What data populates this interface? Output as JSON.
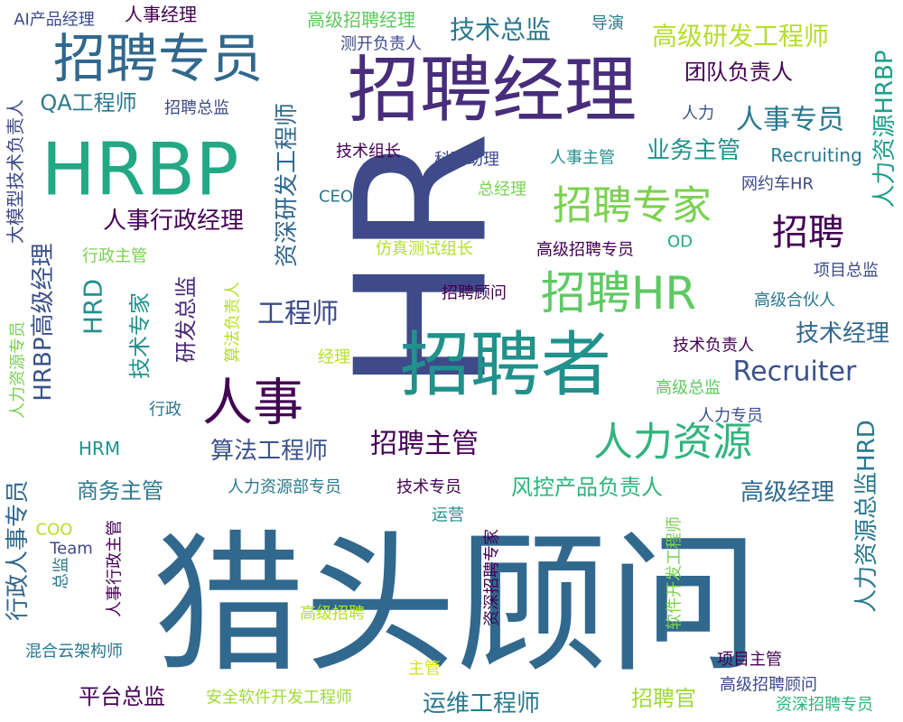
{
  "chart_data": {
    "type": "wordcloud",
    "words": [
      {
        "text": "猎头顾问",
        "color": "#31688e"
      },
      {
        "text": "HR",
        "color": "#3e4a89"
      },
      {
        "text": "招聘经理",
        "color": "#472d7b"
      },
      {
        "text": "HRBP",
        "color": "#22a884"
      },
      {
        "text": "招聘者",
        "color": "#21918c"
      },
      {
        "text": "招聘专员",
        "color": "#31688e"
      },
      {
        "text": "人事",
        "color": "#440154"
      },
      {
        "text": "招聘HR",
        "color": "#5ec962"
      },
      {
        "text": "人力资源",
        "color": "#2fb47c"
      },
      {
        "text": "招聘专家",
        "color": "#7ad151"
      },
      {
        "text": "招聘",
        "color": "#440154"
      },
      {
        "text": "Recruiter",
        "color": "#3b528b"
      },
      {
        "text": "人力资源总监HRD",
        "color": "#2a788e"
      },
      {
        "text": "资深研发工程师",
        "color": "#31688e"
      },
      {
        "text": "人力资源HRBP",
        "color": "#1f9e89"
      },
      {
        "text": "招聘主管",
        "color": "#440154"
      },
      {
        "text": "人事专员",
        "color": "#2a788e"
      },
      {
        "text": "工程师",
        "color": "#3e4a89"
      },
      {
        "text": "HRBP高级经理",
        "color": "#3b528b"
      },
      {
        "text": "HRD",
        "color": "#21918c"
      },
      {
        "text": "技术总监",
        "color": "#2a788e"
      },
      {
        "text": "高级研发工程师",
        "color": "#b5de2b"
      },
      {
        "text": "人事行政经理",
        "color": "#440154"
      },
      {
        "text": "高级经理",
        "color": "#31688e"
      },
      {
        "text": "行政人事专员",
        "color": "#31688e"
      },
      {
        "text": "算法工程师",
        "color": "#3b528b"
      },
      {
        "text": "运维工程师",
        "color": "#2a788e"
      },
      {
        "text": "技术专家",
        "color": "#21918c"
      },
      {
        "text": "业务主管",
        "color": "#21918c"
      },
      {
        "text": "团队负责人",
        "color": "#440154"
      },
      {
        "text": "研发总监",
        "color": "#482878"
      },
      {
        "text": "风控产品负责人",
        "color": "#2fb47c"
      },
      {
        "text": "技术经理",
        "color": "#31688e"
      },
      {
        "text": "平台总监",
        "color": "#440154"
      },
      {
        "text": "招聘官",
        "color": "#a0da39"
      },
      {
        "text": "商务主管",
        "color": "#2a788e"
      },
      {
        "text": "QA工程师",
        "color": "#2a788e"
      },
      {
        "text": "大模型技术负责人",
        "color": "#3e4a89"
      },
      {
        "text": "高级招聘经理",
        "color": "#5ec962"
      },
      {
        "text": "HRM",
        "color": "#21918c"
      },
      {
        "text": "Recruiting",
        "color": "#2a788e"
      },
      {
        "text": "AI产品经理",
        "color": "#3e4a89"
      },
      {
        "text": "人事经理",
        "color": "#440154"
      },
      {
        "text": "测开负责人",
        "color": "#3e4a89"
      },
      {
        "text": "导演",
        "color": "#2a788e"
      },
      {
        "text": "招聘总监",
        "color": "#3e4a89"
      },
      {
        "text": "人力",
        "color": "#3b528b"
      },
      {
        "text": "技术组长",
        "color": "#440154"
      },
      {
        "text": "科研助理",
        "color": "#3e4a89"
      },
      {
        "text": "人事主管",
        "color": "#21918c"
      },
      {
        "text": "CEO",
        "color": "#2a788e"
      },
      {
        "text": "总经理",
        "color": "#7ad151"
      },
      {
        "text": "网约车HR",
        "color": "#3e4a89"
      },
      {
        "text": "行政主管",
        "color": "#7ad151"
      },
      {
        "text": "仿真测试组长",
        "color": "#b5de2b"
      },
      {
        "text": "高级招聘专员",
        "color": "#440154"
      },
      {
        "text": "OD",
        "color": "#22a884"
      },
      {
        "text": "项目总监",
        "color": "#3e4a89"
      },
      {
        "text": "算法负责人",
        "color": "#b5de2b"
      },
      {
        "text": "招聘顾问",
        "color": "#440154"
      },
      {
        "text": "高级合伙人",
        "color": "#2a788e"
      },
      {
        "text": "技术负责人",
        "color": "#440154"
      },
      {
        "text": "经理",
        "color": "#b5de2b"
      },
      {
        "text": "高级总监",
        "color": "#5ec962"
      },
      {
        "text": "行政",
        "color": "#2a788e"
      },
      {
        "text": "人力专员",
        "color": "#3b528b"
      },
      {
        "text": "人力资源专员",
        "color": "#7ad151"
      },
      {
        "text": "人力资源部专员",
        "color": "#2a788e"
      },
      {
        "text": "技术专员",
        "color": "#440154"
      },
      {
        "text": "运营",
        "color": "#21918c"
      },
      {
        "text": "COO",
        "color": "#b5de2b"
      },
      {
        "text": "Team",
        "color": "#3e4a89"
      },
      {
        "text": "人事行政主管",
        "color": "#440154"
      },
      {
        "text": "资深招聘专家",
        "color": "#440154"
      },
      {
        "text": "软件开发工程师",
        "color": "#7ad151"
      },
      {
        "text": "总监",
        "color": "#2a788e"
      },
      {
        "text": "高级招聘",
        "color": "#b5de2b"
      },
      {
        "text": "项目主管",
        "color": "#440154"
      },
      {
        "text": "混合云架构师",
        "color": "#2a788e"
      },
      {
        "text": "主管",
        "color": "#d8e219"
      },
      {
        "text": "高级招聘顾问",
        "color": "#3e4a89"
      },
      {
        "text": "安全软件开发工程师",
        "color": "#a0da39"
      },
      {
        "text": "资深招聘专员",
        "color": "#2fb47c"
      }
    ]
  }
}
